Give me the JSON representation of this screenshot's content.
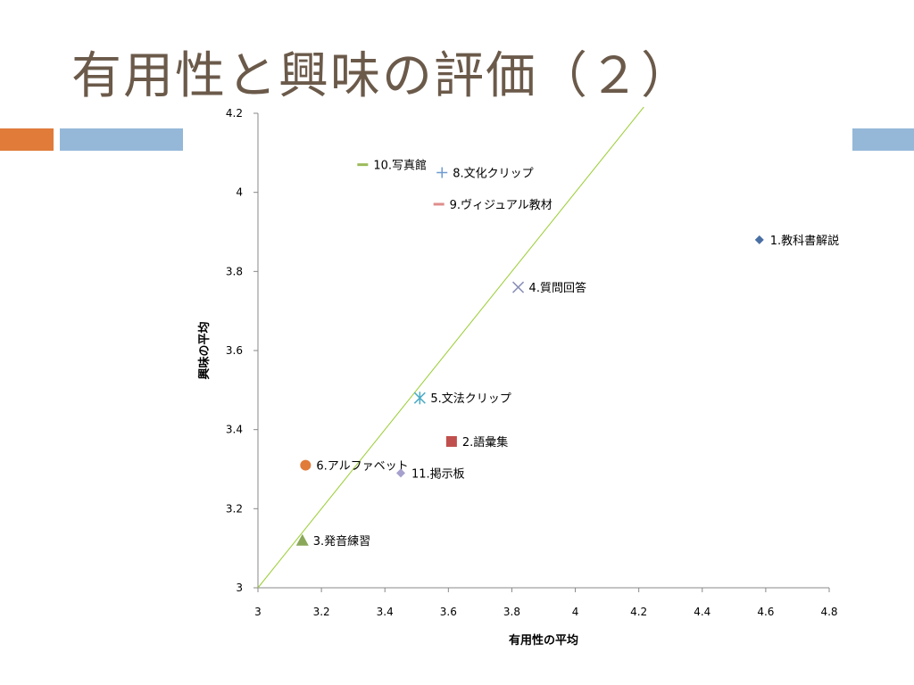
{
  "slide": {
    "title": "有用性と興味の評価（２）",
    "accent_orange": "#e07b3a",
    "accent_blue": "#95b8d8"
  },
  "chart_data": {
    "type": "scatter",
    "xlabel": "有用性の平均",
    "ylabel": "興味の平均",
    "xlim": [
      3,
      4.8
    ],
    "ylim": [
      3,
      4.2
    ],
    "x_ticks": [
      3,
      3.2,
      3.4,
      3.6,
      3.8,
      4,
      4.2,
      4.4,
      4.6,
      4.8
    ],
    "y_ticks": [
      3,
      3.2,
      3.4,
      3.6,
      3.8,
      4,
      4.2
    ],
    "x_tick_labels": [
      "3",
      "3.2",
      "3.4",
      "3.6",
      "3.8",
      "4",
      "4.2",
      "4.4",
      "4.6",
      "4.8"
    ],
    "y_tick_labels": [
      "3",
      "3.2",
      "3.4",
      "3.6",
      "3.8",
      "4",
      "4.2"
    ],
    "grid": false,
    "reference_line": {
      "from": [
        3,
        3
      ],
      "to": [
        4.8,
        4.8
      ],
      "color": "#9acd32"
    },
    "points": [
      {
        "label": "1.教科書解説",
        "x": 4.58,
        "y": 3.88,
        "marker": "diamond",
        "color": "#4a6fa5"
      },
      {
        "label": "2.語彙集",
        "x": 3.61,
        "y": 3.37,
        "marker": "square",
        "color": "#c0504d"
      },
      {
        "label": "3.発音練習",
        "x": 3.14,
        "y": 3.12,
        "marker": "triangle",
        "color": "#8aa85a"
      },
      {
        "label": "4.質問回答",
        "x": 3.82,
        "y": 3.76,
        "marker": "x",
        "color": "#8a8fb8"
      },
      {
        "label": "5.文法クリップ",
        "x": 3.51,
        "y": 3.48,
        "marker": "asterisk",
        "color": "#4bacc6"
      },
      {
        "label": "6.アルファベット",
        "x": 3.15,
        "y": 3.31,
        "marker": "circle",
        "color": "#e07b3a"
      },
      {
        "label": "8.文化クリップ",
        "x": 3.58,
        "y": 4.05,
        "marker": "plus",
        "color": "#6f9ad0"
      },
      {
        "label": "9.ヴィジュアル教材",
        "x": 3.57,
        "y": 3.97,
        "marker": "dash",
        "color": "#e08c8c"
      },
      {
        "label": "10.写真館",
        "x": 3.33,
        "y": 4.07,
        "marker": "dash",
        "color": "#9bbb59"
      },
      {
        "label": "11.掲示板",
        "x": 3.45,
        "y": 3.29,
        "marker": "diamond",
        "color": "#a5a0cc"
      }
    ]
  }
}
